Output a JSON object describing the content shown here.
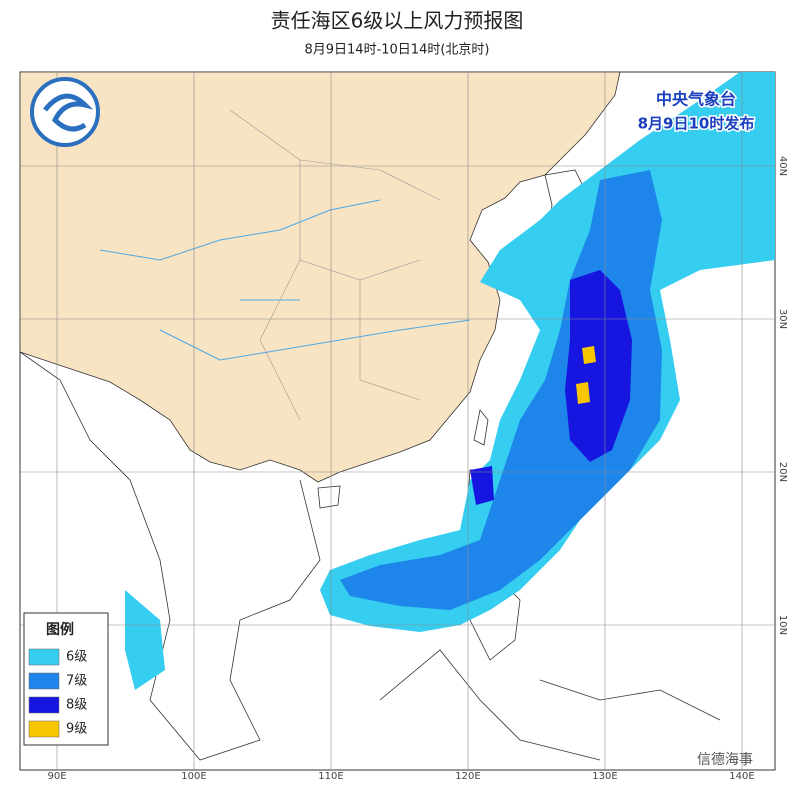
{
  "header": {
    "title": "责任海区6级以上风力预报图",
    "subtitle": "8月9日14时-10日14时(北京时)"
  },
  "issuer": {
    "name": "中央气象台",
    "time": "8月9日10时发布"
  },
  "legend": {
    "title": "图例",
    "items": [
      {
        "label": "6级",
        "color": "#35cdf0"
      },
      {
        "label": "7级",
        "color": "#1e86ea"
      },
      {
        "label": "8级",
        "color": "#1616e0"
      },
      {
        "label": "9级",
        "color": "#f7c600"
      }
    ]
  },
  "axes": {
    "lon_labels": [
      "90E",
      "100E",
      "110E",
      "120E",
      "130E",
      "140E"
    ],
    "lat_labels": [
      "10N",
      "20N",
      "30N",
      "40N"
    ]
  },
  "watermark": "信德海事"
}
